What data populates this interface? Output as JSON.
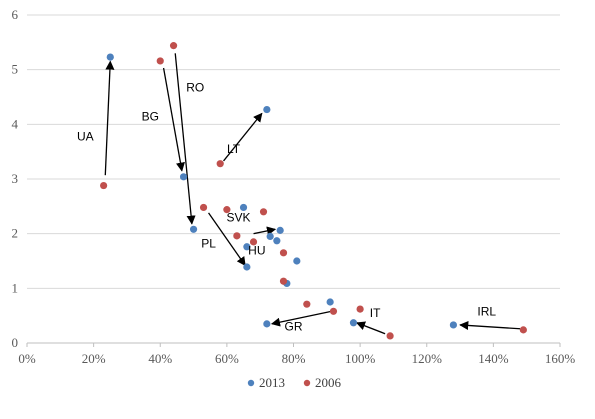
{
  "chart_data": {
    "type": "scatter",
    "title": "",
    "xlabel": "",
    "ylabel": "",
    "xlim": [
      0,
      1.6
    ],
    "ylim": [
      0,
      6
    ],
    "x_ticks": [
      0,
      0.2,
      0.4,
      0.6,
      0.8,
      1.0,
      1.2,
      1.4,
      1.6
    ],
    "x_tick_labels": [
      "0%",
      "20%",
      "40%",
      "60%",
      "80%",
      "100%",
      "120%",
      "140%",
      "160%"
    ],
    "y_ticks": [
      0,
      1,
      2,
      3,
      4,
      5,
      6
    ],
    "y_tick_labels": [
      "0",
      "1",
      "2",
      "3",
      "4",
      "5",
      "6"
    ],
    "grid": "horizontal",
    "legend": "bottom",
    "colors": {
      "2013": "#4e81bd",
      "2006": "#c0504d"
    },
    "series": [
      {
        "name": "2013",
        "points": [
          [
            0.25,
            5.23
          ],
          [
            0.72,
            4.27
          ],
          [
            0.47,
            3.04
          ],
          [
            0.65,
            2.48
          ],
          [
            0.5,
            2.08
          ],
          [
            0.76,
            2.06
          ],
          [
            0.73,
            1.95
          ],
          [
            0.75,
            1.87
          ],
          [
            0.66,
            1.76
          ],
          [
            0.81,
            1.5
          ],
          [
            0.66,
            1.39
          ],
          [
            0.78,
            1.09
          ],
          [
            0.91,
            0.75
          ],
          [
            0.72,
            0.35
          ],
          [
            0.98,
            0.37
          ],
          [
            1.28,
            0.33
          ]
        ]
      },
      {
        "name": "2006",
        "points": [
          [
            0.44,
            5.44
          ],
          [
            0.4,
            5.16
          ],
          [
            0.58,
            3.28
          ],
          [
            0.23,
            2.88
          ],
          [
            0.53,
            2.48
          ],
          [
            0.6,
            2.44
          ],
          [
            0.71,
            2.4
          ],
          [
            0.63,
            1.96
          ],
          [
            0.68,
            1.85
          ],
          [
            0.77,
            1.65
          ],
          [
            0.77,
            1.13
          ],
          [
            0.84,
            0.71
          ],
          [
            0.92,
            0.58
          ],
          [
            1.0,
            0.62
          ],
          [
            1.09,
            0.13
          ],
          [
            1.49,
            0.24
          ]
        ]
      }
    ],
    "annotations": [
      {
        "label": "UA",
        "text_at": [
          0.175,
          3.7
        ],
        "from": [
          0.235,
          3.07
        ],
        "to": [
          0.25,
          5.15
        ]
      },
      {
        "label": "BG",
        "text_at": [
          0.37,
          4.07
        ],
        "from": [
          0.41,
          5.03
        ],
        "to": [
          0.465,
          3.15
        ]
      },
      {
        "label": "RO",
        "text_at": [
          0.505,
          4.6
        ],
        "from": [
          0.445,
          5.3
        ],
        "to": [
          0.495,
          2.18
        ]
      },
      {
        "label": "LT",
        "text_at": [
          0.62,
          3.48
        ],
        "from": [
          0.59,
          3.33
        ],
        "to": [
          0.705,
          4.2
        ]
      },
      {
        "label": "SVK",
        "text_at": [
          0.635,
          2.22
        ],
        "from": [
          0.68,
          2.0
        ],
        "to": [
          0.745,
          2.08
        ]
      },
      {
        "label": "PL",
        "text_at": [
          0.545,
          1.75
        ],
        "from": [
          0.545,
          2.38
        ],
        "to": [
          0.655,
          1.42
        ]
      },
      {
        "label": "HU",
        "text_at": [
          0.69,
          1.62
        ],
        "from": null,
        "to": null
      },
      {
        "label": "GR",
        "text_at": [
          0.8,
          0.23
        ],
        "from": [
          0.915,
          0.58
        ],
        "to": [
          0.735,
          0.35
        ]
      },
      {
        "label": "IT",
        "text_at": [
          1.045,
          0.48
        ],
        "from": [
          1.075,
          0.17
        ],
        "to": [
          0.99,
          0.37
        ]
      },
      {
        "label": "IRL",
        "text_at": [
          1.38,
          0.5
        ],
        "from": [
          1.48,
          0.26
        ],
        "to": [
          1.3,
          0.33
        ]
      }
    ]
  }
}
